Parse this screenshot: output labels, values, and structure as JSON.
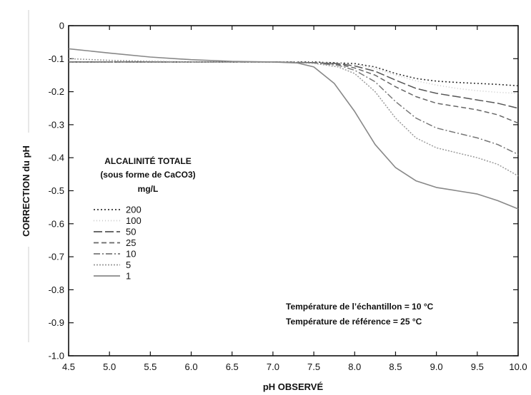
{
  "chart_data": {
    "type": "line",
    "title": "",
    "xlabel": "pH OBSERVÉ",
    "ylabel": "CORRECTION du pH",
    "xlim": [
      4.5,
      10.0
    ],
    "ylim": [
      -1.0,
      0
    ],
    "x_ticks": [
      4.5,
      5.0,
      5.5,
      6.0,
      6.5,
      7.0,
      7.5,
      8.0,
      8.5,
      9.0,
      9.5,
      10.0
    ],
    "y_ticks": [
      0,
      -0.1,
      -0.2,
      -0.3,
      -0.4,
      -0.5,
      -0.6,
      -0.7,
      -0.8,
      -0.9,
      -1.0
    ],
    "x_tick_labels": [
      "4.5",
      "5.0",
      "5.5",
      "6.0",
      "6.5",
      "7.0",
      "7.5",
      "8.0",
      "8.5",
      "9.0",
      "9.5",
      "10.0"
    ],
    "y_tick_labels": [
      "0",
      "-0.1",
      "-0.2",
      "-0.3",
      "-0.4",
      "-0.5",
      "-0.6",
      "-0.7",
      "-0.8",
      "-0.9",
      "-1.0"
    ],
    "grid": false,
    "legend": {
      "title_lines": [
        "ALCALINITÉ TOTALE",
        "(sous forme de CaCO3)",
        "mg/L"
      ],
      "placement": "left"
    },
    "annotations": [
      "Température de l’échantillon = 10 °C",
      "Température de référence = 25 °C"
    ],
    "series": [
      {
        "name": "200",
        "color": "#333333",
        "x": [
          4.5,
          5.0,
          5.5,
          6.0,
          6.5,
          7.0,
          7.5,
          8.0,
          8.25,
          8.5,
          8.75,
          9.0,
          9.25,
          9.5,
          9.75,
          10.0
        ],
        "y": [
          -0.11,
          -0.11,
          -0.11,
          -0.11,
          -0.11,
          -0.11,
          -0.11,
          -0.115,
          -0.125,
          -0.145,
          -0.16,
          -0.168,
          -0.172,
          -0.175,
          -0.178,
          -0.182
        ]
      },
      {
        "name": "100",
        "color": "#c8c8c8",
        "x": [
          4.5,
          5.0,
          5.5,
          6.0,
          6.5,
          7.0,
          7.5,
          7.8,
          8.0,
          8.25,
          8.5,
          8.75,
          9.0,
          9.25,
          9.5,
          9.75,
          10.0
        ],
        "y": [
          -0.11,
          -0.11,
          -0.11,
          -0.11,
          -0.11,
          -0.11,
          -0.11,
          -0.112,
          -0.118,
          -0.13,
          -0.15,
          -0.167,
          -0.18,
          -0.19,
          -0.197,
          -0.202,
          -0.205
        ]
      },
      {
        "name": "50",
        "color": "#555555",
        "x": [
          4.5,
          5.0,
          5.5,
          6.0,
          6.5,
          7.0,
          7.5,
          7.8,
          8.0,
          8.25,
          8.5,
          8.75,
          9.0,
          9.25,
          9.5,
          9.75,
          10.0
        ],
        "y": [
          -0.11,
          -0.11,
          -0.11,
          -0.11,
          -0.11,
          -0.11,
          -0.112,
          -0.115,
          -0.122,
          -0.138,
          -0.165,
          -0.19,
          -0.205,
          -0.215,
          -0.225,
          -0.235,
          -0.25
        ]
      },
      {
        "name": "25",
        "color": "#666666",
        "x": [
          4.5,
          5.0,
          5.5,
          6.0,
          6.5,
          7.0,
          7.5,
          7.8,
          8.0,
          8.25,
          8.5,
          8.75,
          9.0,
          9.25,
          9.5,
          9.75,
          10.0
        ],
        "y": [
          -0.11,
          -0.11,
          -0.11,
          -0.11,
          -0.11,
          -0.11,
          -0.112,
          -0.117,
          -0.128,
          -0.15,
          -0.185,
          -0.215,
          -0.235,
          -0.245,
          -0.255,
          -0.27,
          -0.295
        ]
      },
      {
        "name": "10",
        "color": "#777777",
        "x": [
          4.5,
          5.0,
          5.5,
          6.0,
          6.5,
          7.0,
          7.5,
          7.8,
          8.0,
          8.25,
          8.5,
          8.75,
          9.0,
          9.25,
          9.5,
          9.75,
          10.0
        ],
        "y": [
          -0.11,
          -0.11,
          -0.11,
          -0.11,
          -0.11,
          -0.11,
          -0.113,
          -0.12,
          -0.135,
          -0.17,
          -0.23,
          -0.28,
          -0.31,
          -0.325,
          -0.34,
          -0.36,
          -0.39
        ]
      },
      {
        "name": "5",
        "color": "#999999",
        "x": [
          4.5,
          5.0,
          5.5,
          6.0,
          6.5,
          7.0,
          7.5,
          7.8,
          8.0,
          8.25,
          8.5,
          8.75,
          9.0,
          9.25,
          9.5,
          9.75,
          10.0
        ],
        "y": [
          -0.1,
          -0.105,
          -0.108,
          -0.11,
          -0.11,
          -0.11,
          -0.114,
          -0.125,
          -0.145,
          -0.2,
          -0.28,
          -0.34,
          -0.37,
          -0.385,
          -0.4,
          -0.42,
          -0.455
        ]
      },
      {
        "name": "1",
        "color": "#888888",
        "x": [
          4.5,
          5.0,
          5.5,
          6.0,
          6.5,
          7.0,
          7.3,
          7.5,
          7.75,
          8.0,
          8.25,
          8.5,
          8.75,
          9.0,
          9.25,
          9.5,
          9.75,
          10.0
        ],
        "y": [
          -0.07,
          -0.083,
          -0.095,
          -0.103,
          -0.108,
          -0.11,
          -0.113,
          -0.125,
          -0.175,
          -0.26,
          -0.36,
          -0.43,
          -0.47,
          -0.49,
          -0.5,
          -0.51,
          -0.53,
          -0.555
        ]
      }
    ]
  }
}
